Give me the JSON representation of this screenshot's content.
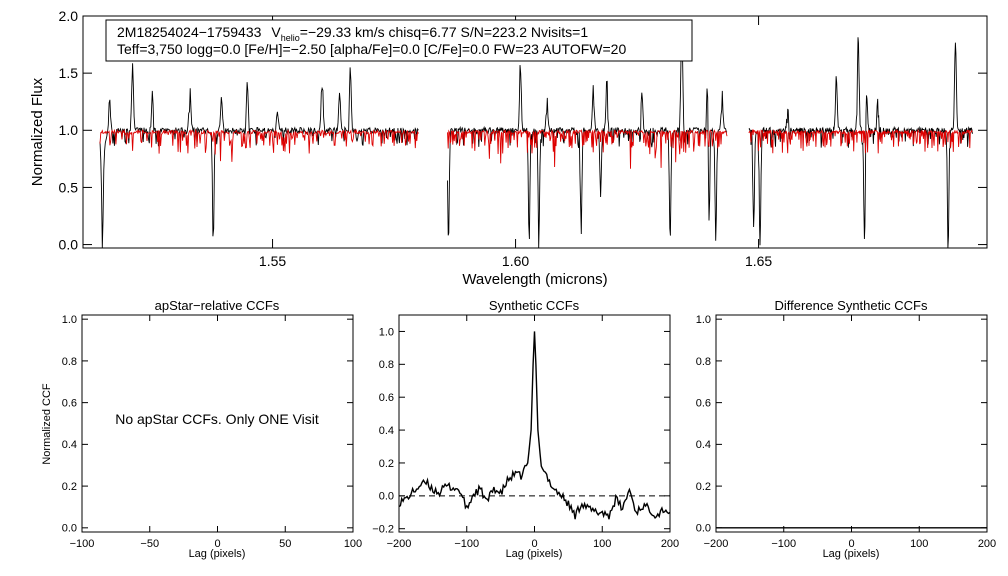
{
  "chart_data": [
    {
      "type": "line",
      "title": "",
      "xlabel": "Wavelength (microns)",
      "ylabel": "Normalized Flux",
      "xlim": [
        1.511,
        1.697
      ],
      "ylim": [
        -0.03,
        2.0
      ],
      "xticks": [
        "1.55",
        "1.60",
        "1.65"
      ],
      "xtick_values": [
        1.55,
        1.6,
        1.65
      ],
      "yticks": [
        "0.0",
        "0.5",
        "1.0",
        "1.5",
        "2.0"
      ],
      "ytick_values": [
        0.0,
        0.5,
        1.0,
        1.5,
        2.0
      ],
      "info_line1": {
        "star": "2M18254024−1759433",
        "v": "V",
        "helio": "helio",
        "vrest": "=−29.33 km/s  chisq=6.77  S/N=223.2  Nvisits=1"
      },
      "info_line2": "Teff=3,750 logg=0.0 [Fe/H]=−2.50 [alpha/Fe]=0.0 [C/Fe]=0.0 FW=23 AUTOFW=20",
      "colors": {
        "observed": "#000000",
        "model": "#dd0000"
      },
      "chips": [
        [
          1.5145,
          1.58
        ],
        [
          1.586,
          1.6435
        ],
        [
          1.648,
          1.694
        ]
      ],
      "series": [
        {
          "values_note_only_visible": "",
          "emission_lines": [
            [
              1.5165,
              0.35
            ],
            [
              1.5212,
              0.62
            ],
            [
              1.5253,
              0.33
            ],
            [
              1.533,
              0.37
            ],
            [
              1.5395,
              0.3
            ],
            [
              1.5448,
              0.45
            ],
            [
              1.551,
              0.18
            ],
            [
              1.5602,
              0.52
            ],
            [
              1.5638,
              0.33
            ],
            [
              1.566,
              0.57
            ],
            [
              1.601,
              0.62
            ],
            [
              1.6065,
              0.29
            ],
            [
              1.616,
              0.38
            ],
            [
              1.6188,
              0.45
            ],
            [
              1.626,
              0.35
            ],
            [
              1.6342,
              0.98
            ],
            [
              1.6395,
              0.5
            ],
            [
              1.6425,
              0.35
            ],
            [
              1.656,
              0.2
            ],
            [
              1.666,
              0.46
            ],
            [
              1.6705,
              0.82
            ],
            [
              1.6722,
              0.35
            ],
            [
              1.6745,
              0.25
            ],
            [
              1.6905,
              0.78
            ]
          ],
          "absorption_lines": [
            [
              1.515,
              0.95
            ],
            [
              1.5378,
              1.0
            ],
            [
              1.5862,
              1.0
            ],
            [
              1.6028,
              0.98
            ],
            [
              1.6048,
              0.95
            ],
            [
              1.6135,
              0.9
            ],
            [
              1.6175,
              0.6
            ],
            [
              1.6318,
              0.98
            ],
            [
              1.6398,
              0.9
            ],
            [
              1.6412,
              0.98
            ],
            [
              1.649,
              0.85
            ],
            [
              1.6503,
              1.0
            ],
            [
              1.6718,
              1.0
            ],
            [
              1.689,
              1.0
            ]
          ]
        }
      ]
    },
    {
      "type": "line",
      "title": "apStar−relative CCFs",
      "xlabel": "Lag (pixels)",
      "ylabel": "Normalized CCF",
      "xlim": [
        -100,
        100
      ],
      "ylim": [
        -0.02,
        1.02
      ],
      "xticks": [
        "−100",
        "−50",
        "0",
        "50",
        "100"
      ],
      "xtick_values": [
        -100,
        -50,
        0,
        50,
        100
      ],
      "yticks": [
        "0.0",
        "0.2",
        "0.4",
        "0.6",
        "0.8",
        "1.0"
      ],
      "ytick_values": [
        0.0,
        0.2,
        0.4,
        0.6,
        0.8,
        1.0
      ],
      "annotation": "No apStar CCFs.  Only ONE Visit",
      "series": []
    },
    {
      "type": "line",
      "title": "Synthetic CCFs",
      "xlabel": "Lag (pixels)",
      "ylabel": "",
      "xlim": [
        -200,
        200
      ],
      "ylim": [
        -0.22,
        1.1
      ],
      "xticks": [
        "−200",
        "−100",
        "0",
        "100",
        "200"
      ],
      "xtick_values": [
        -200,
        -100,
        0,
        100,
        200
      ],
      "yticks": [
        "−0.2",
        "0.0",
        "0.2",
        "0.4",
        "0.6",
        "0.8",
        "1.0"
      ],
      "ytick_values": [
        -0.2,
        0.0,
        0.2,
        0.4,
        0.6,
        0.8,
        1.0
      ],
      "zero_line": 0.0,
      "series": [
        {
          "x": [
            -200,
            -190,
            -180,
            -170,
            -160,
            -150,
            -140,
            -130,
            -120,
            -110,
            -100,
            -90,
            -80,
            -70,
            -60,
            -50,
            -40,
            -30,
            -20,
            -10,
            -5,
            -2,
            0,
            2,
            5,
            10,
            20,
            30,
            40,
            50,
            60,
            70,
            80,
            90,
            100,
            110,
            120,
            130,
            140,
            150,
            160,
            170,
            180,
            190,
            200
          ],
          "values": [
            -0.04,
            -0.02,
            0.02,
            0.06,
            0.08,
            0.04,
            0.02,
            0.06,
            0.05,
            0.03,
            -0.08,
            0.01,
            0.04,
            -0.04,
            0.05,
            0.01,
            0.09,
            0.13,
            0.12,
            0.2,
            0.4,
            0.8,
            1.0,
            0.8,
            0.4,
            0.18,
            0.1,
            0.04,
            0.0,
            -0.05,
            -0.12,
            -0.04,
            -0.08,
            -0.1,
            -0.1,
            -0.12,
            -0.02,
            -0.08,
            0.04,
            -0.1,
            -0.06,
            -0.08,
            -0.12,
            -0.08,
            -0.1
          ]
        }
      ]
    },
    {
      "type": "line",
      "title": "Difference Synthetic CCFs",
      "xlabel": "Lag (pixels)",
      "ylabel": "",
      "xlim": [
        -200,
        200
      ],
      "ylim": [
        -0.02,
        1.02
      ],
      "xticks": [
        "−200",
        "−100",
        "0",
        "100",
        "200"
      ],
      "xtick_values": [
        -200,
        -100,
        0,
        100,
        200
      ],
      "yticks": [
        "0.0",
        "0.2",
        "0.4",
        "0.6",
        "0.8",
        "1.0"
      ],
      "ytick_values": [
        0.0,
        0.2,
        0.4,
        0.6,
        0.8,
        1.0
      ],
      "series": [
        {
          "x": [
            -200,
            200
          ],
          "values": [
            0.0,
            0.0
          ]
        }
      ]
    }
  ]
}
